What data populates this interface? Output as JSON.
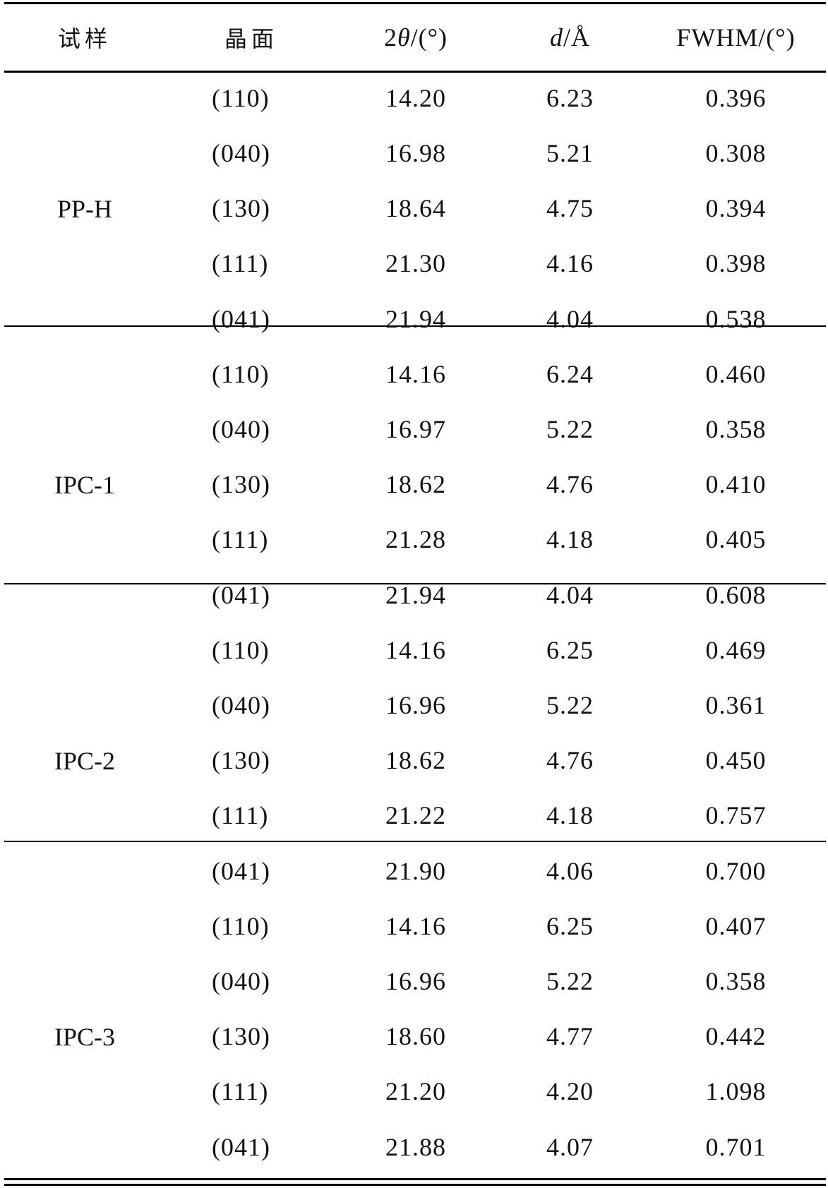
{
  "headers": {
    "sample": "试样",
    "plane": "晶面",
    "two_theta_prefix": "2",
    "two_theta_symbol": "θ",
    "two_theta_unit": "/(°)",
    "d_symbol": "d",
    "d_unit": "/Å",
    "fwhm": "FWHM/(°)"
  },
  "groups": [
    {
      "sample": "PP-H",
      "rows": [
        {
          "plane": "(110)",
          "two_theta": "14.20",
          "d": "6.23",
          "fwhm": "0.396"
        },
        {
          "plane": "(040)",
          "two_theta": "16.98",
          "d": "5.21",
          "fwhm": "0.308"
        },
        {
          "plane": "(130)",
          "two_theta": "18.64",
          "d": "4.75",
          "fwhm": "0.394"
        },
        {
          "plane": "(111)",
          "two_theta": "21.30",
          "d": "4.16",
          "fwhm": "0.398"
        },
        {
          "plane": "(041)",
          "two_theta": "21.94",
          "d": "4.04",
          "fwhm": "0.538"
        }
      ]
    },
    {
      "sample": "IPC-1",
      "rows": [
        {
          "plane": "(110)",
          "two_theta": "14.16",
          "d": "6.24",
          "fwhm": "0.460"
        },
        {
          "plane": "(040)",
          "two_theta": "16.97",
          "d": "5.22",
          "fwhm": "0.358"
        },
        {
          "plane": "(130)",
          "two_theta": "18.62",
          "d": "4.76",
          "fwhm": "0.410"
        },
        {
          "plane": "(111)",
          "two_theta": "21.28",
          "d": "4.18",
          "fwhm": "0.405"
        },
        {
          "plane": "(041)",
          "two_theta": "21.94",
          "d": "4.04",
          "fwhm": "0.608"
        }
      ]
    },
    {
      "sample": "IPC-2",
      "rows": [
        {
          "plane": "(110)",
          "two_theta": "14.16",
          "d": "6.25",
          "fwhm": "0.469"
        },
        {
          "plane": "(040)",
          "two_theta": "16.96",
          "d": "5.22",
          "fwhm": "0.361"
        },
        {
          "plane": "(130)",
          "two_theta": "18.62",
          "d": "4.76",
          "fwhm": "0.450"
        },
        {
          "plane": "(111)",
          "two_theta": "21.22",
          "d": "4.18",
          "fwhm": "0.757"
        },
        {
          "plane": "(041)",
          "two_theta": "21.90",
          "d": "4.06",
          "fwhm": "0.700"
        }
      ]
    },
    {
      "sample": "IPC-3",
      "rows": [
        {
          "plane": "(110)",
          "two_theta": "14.16",
          "d": "6.25",
          "fwhm": "0.407"
        },
        {
          "plane": "(040)",
          "two_theta": "16.96",
          "d": "5.22",
          "fwhm": "0.358"
        },
        {
          "plane": "(130)",
          "two_theta": "18.60",
          "d": "4.77",
          "fwhm": "0.442"
        },
        {
          "plane": "(111)",
          "two_theta": "21.20",
          "d": "4.20",
          "fwhm": "1.098"
        },
        {
          "plane": "(041)",
          "two_theta": "21.88",
          "d": "4.07",
          "fwhm": "0.701"
        }
      ]
    }
  ]
}
